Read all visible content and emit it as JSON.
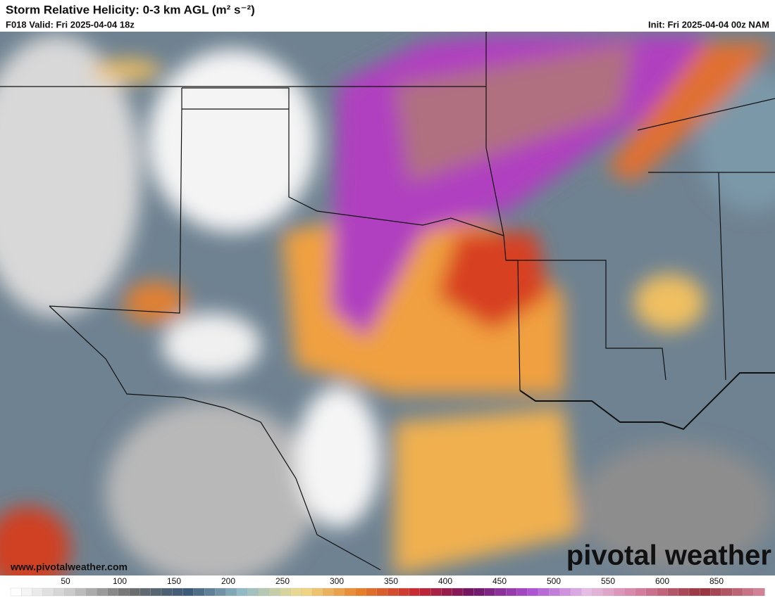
{
  "header": {
    "title": "Storm Relative Helicity: 0-3 km AGL (m² s⁻²)",
    "valid": "F018 Valid: Fri 2025-04-04 18z",
    "init": "Init: Fri 2025-04-04 00z NAM"
  },
  "map": {
    "website": "www.pivotalweather.com",
    "logo": "pivotal weather"
  },
  "colorbar": {
    "labels": [
      "50",
      "100",
      "150",
      "200",
      "250",
      "300",
      "350",
      "400",
      "450",
      "500",
      "550",
      "600",
      "850"
    ]
  }
}
